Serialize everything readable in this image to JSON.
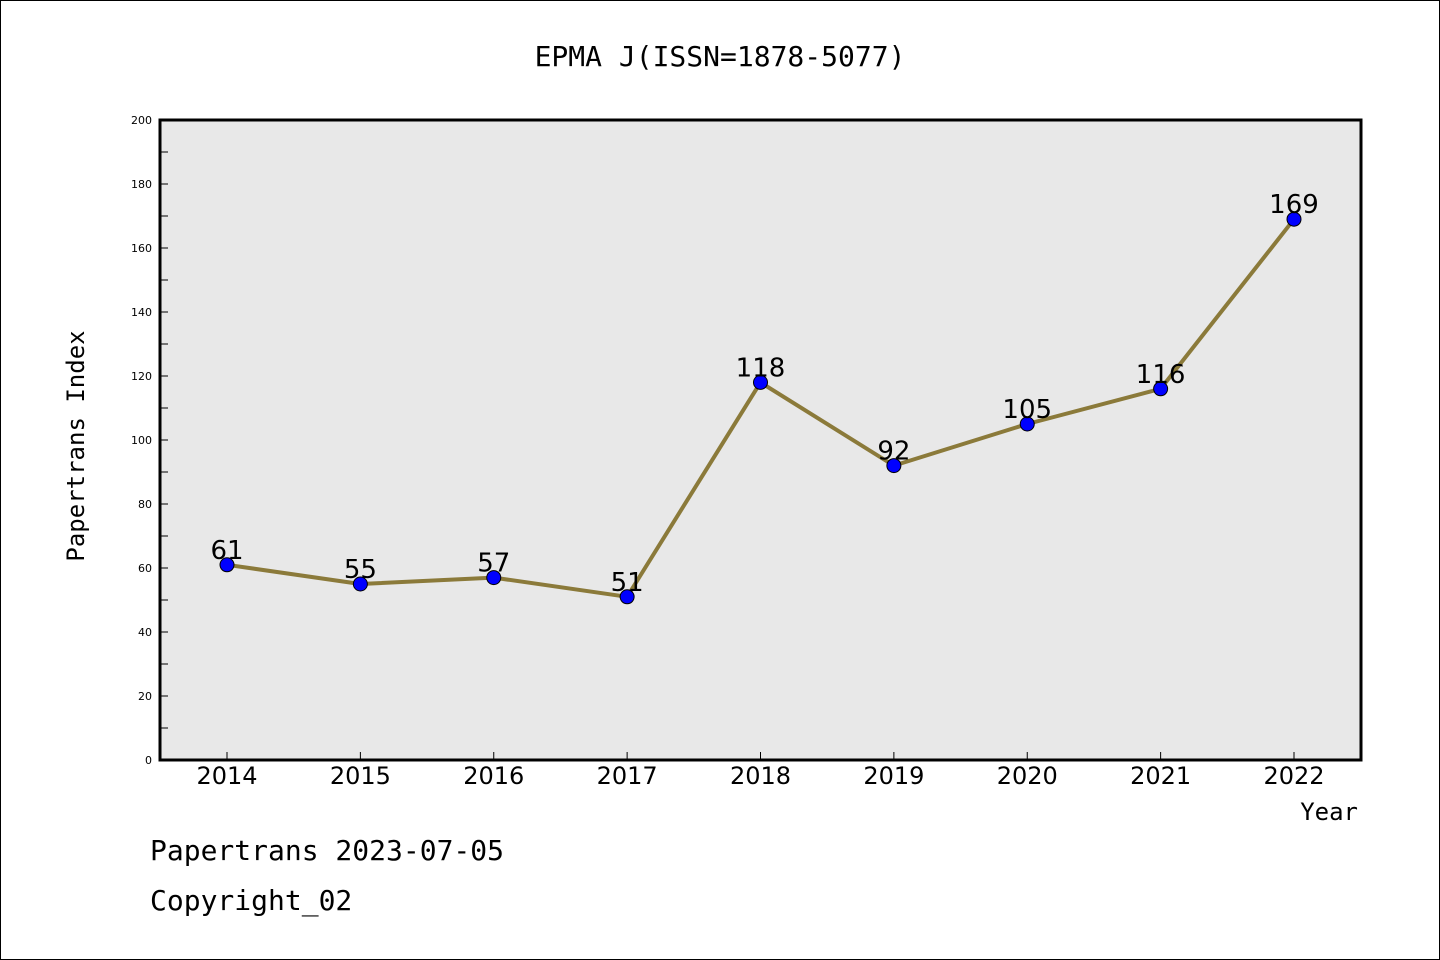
{
  "chart_data": {
    "type": "line",
    "title": "EPMA J(ISSN=1878-5077)",
    "xlabel": "Year",
    "ylabel": "Papertrans Index",
    "categories": [
      "2014",
      "2015",
      "2016",
      "2017",
      "2018",
      "2019",
      "2020",
      "2021",
      "2022"
    ],
    "series": [
      {
        "values": [
          61,
          55,
          57,
          51,
          118,
          92,
          105,
          116,
          169
        ],
        "line_color": "#8b7a3a",
        "marker_color": "#0000ff"
      }
    ],
    "ylim": [
      0,
      200
    ],
    "yticks": [
      0,
      20,
      40,
      60,
      80,
      100,
      120,
      140,
      160,
      180,
      200
    ],
    "grid": false,
    "plot_background": "#e8e8e8",
    "data_labels": true
  },
  "footer": {
    "date_line": "Papertrans 2023-07-05",
    "copyright_line": "Copyright_02"
  }
}
